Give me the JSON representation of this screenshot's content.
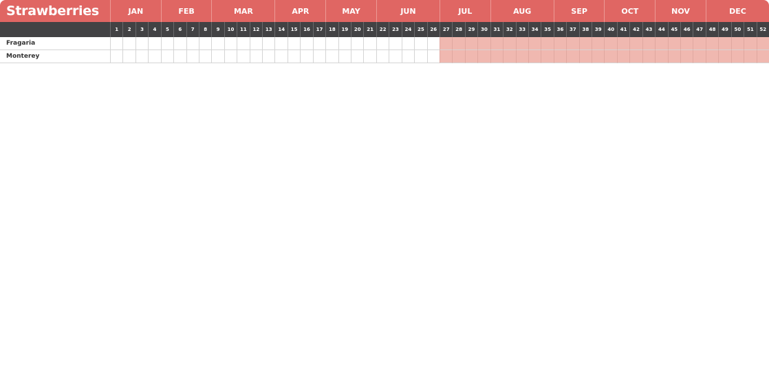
{
  "title": "Strawberries",
  "colors": {
    "header": "#e06663",
    "week_header": "#424244",
    "season": "#f0b8b0"
  },
  "months": [
    {
      "label": "JAN",
      "weeks": 4
    },
    {
      "label": "FEB",
      "weeks": 4
    },
    {
      "label": "MAR",
      "weeks": 5
    },
    {
      "label": "APR",
      "weeks": 4
    },
    {
      "label": "MAY",
      "weeks": 4
    },
    {
      "label": "JUN",
      "weeks": 5
    },
    {
      "label": "JUL",
      "weeks": 4
    },
    {
      "label": "AUG",
      "weeks": 5
    },
    {
      "label": "SEP",
      "weeks": 4
    },
    {
      "label": "OCT",
      "weeks": 4
    },
    {
      "label": "NOV",
      "weeks": 4
    },
    {
      "label": "DEC",
      "weeks": 5
    }
  ],
  "weeks": [
    "1",
    "2",
    "3",
    "4",
    "5",
    "6",
    "7",
    "8",
    "9",
    "10",
    "11",
    "12",
    "13",
    "14",
    "15",
    "16",
    "17",
    "18",
    "19",
    "20",
    "21",
    "22",
    "23",
    "24",
    "25",
    "26",
    "27",
    "28",
    "29",
    "30",
    "31",
    "32",
    "33",
    "34",
    "35",
    "36",
    "37",
    "38",
    "39",
    "40",
    "41",
    "42",
    "43",
    "44",
    "45",
    "46",
    "47",
    "48",
    "49",
    "50",
    "51",
    "52"
  ],
  "rows": [
    {
      "label": "Fragaria",
      "season_weeks": [
        27,
        52
      ]
    },
    {
      "label": "Monterey",
      "season_weeks": [
        27,
        52
      ]
    }
  ]
}
